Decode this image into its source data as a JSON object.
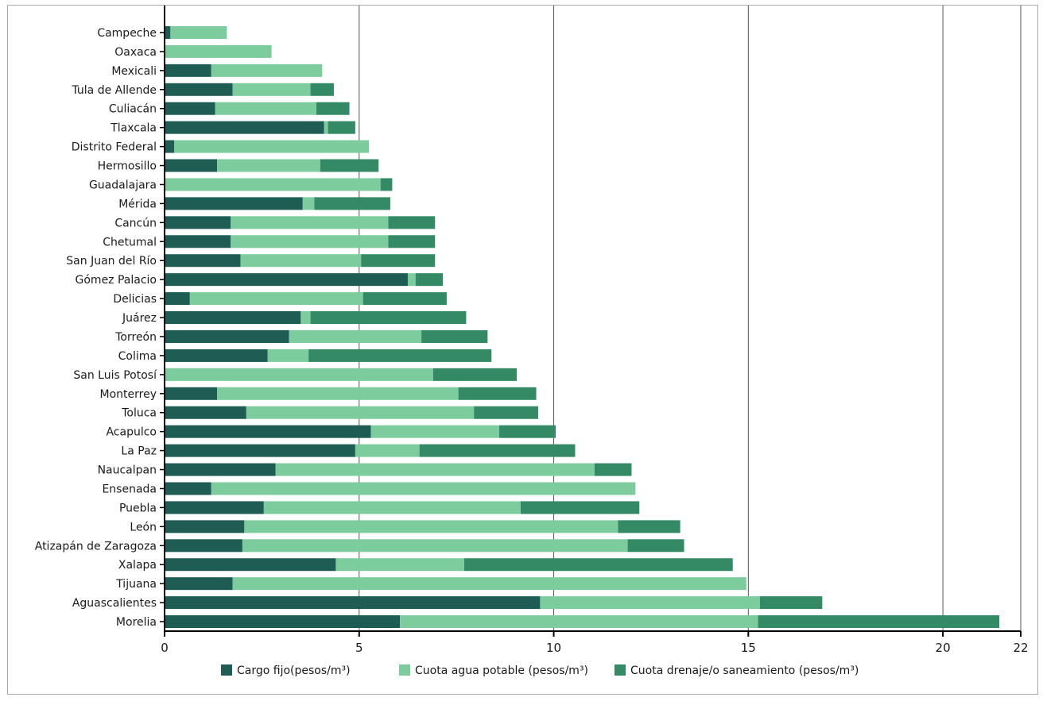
{
  "chart_data": {
    "type": "bar",
    "orientation": "horizontal",
    "stacked": true,
    "title": "",
    "xlabel": "",
    "ylabel": "",
    "xlim": [
      0,
      22
    ],
    "x_ticks": [
      0,
      5,
      10,
      15,
      20,
      22
    ],
    "grid": true,
    "legend_position": "bottom",
    "categories": [
      "Campeche",
      "Oaxaca",
      "Mexicali",
      "Tula de Allende",
      "Culiacán",
      "Tlaxcala",
      "Distrito Federal",
      "Hermosillo",
      "Guadalajara",
      "Mérida",
      "Cancún",
      "Chetumal",
      "San Juan del Río",
      "Gómez Palacio",
      "Delicias",
      "Juárez",
      "Torreón",
      "Colima",
      "San Luis Potosí",
      "Monterrey",
      "Toluca",
      "Acapulco",
      "La Paz",
      "Naucalpan",
      "Ensenada",
      "Puebla",
      "León",
      "Atizapán de Zaragoza",
      "Xalapa",
      "Tijuana",
      "Aguascalientes",
      "Morelia"
    ],
    "series": [
      {
        "name": "Cargo fijo(pesos/m³)",
        "color": "#1e5c54",
        "values": [
          0.15,
          0,
          1.2,
          1.75,
          1.3,
          4.1,
          0.25,
          1.35,
          0,
          3.55,
          1.7,
          1.7,
          1.95,
          6.25,
          0.65,
          3.5,
          3.2,
          2.65,
          0,
          1.35,
          2.1,
          5.3,
          4.9,
          2.85,
          1.2,
          2.55,
          2.05,
          2.0,
          4.4,
          1.75,
          9.65,
          6.05
        ]
      },
      {
        "name": "Cuota agua potable (pesos/m³)",
        "color": "#7dcc9d",
        "values": [
          1.45,
          2.75,
          2.85,
          2.0,
          2.6,
          0.1,
          5.0,
          2.65,
          5.55,
          0.3,
          4.05,
          4.05,
          3.1,
          0.2,
          4.45,
          0.25,
          3.4,
          1.05,
          6.9,
          6.2,
          5.85,
          3.3,
          1.65,
          8.2,
          10.9,
          6.6,
          9.6,
          9.9,
          3.3,
          13.2,
          5.65,
          9.2
        ]
      },
      {
        "name": "Cuota drenaje/o saneamiento (pesos/m³)",
        "color": "#348a65",
        "values": [
          0,
          0,
          0,
          0.6,
          0.85,
          0.7,
          0,
          1.5,
          0.3,
          1.95,
          1.2,
          1.2,
          1.9,
          0.7,
          2.15,
          4.0,
          1.7,
          4.7,
          2.15,
          2.0,
          1.65,
          1.45,
          4.0,
          0.95,
          0,
          3.05,
          1.6,
          1.45,
          6.9,
          0,
          1.6,
          6.2
        ]
      }
    ]
  }
}
